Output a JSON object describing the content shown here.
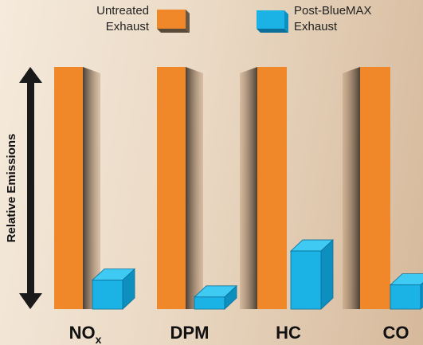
{
  "chart_data": {
    "type": "bar",
    "categories": [
      "NO",
      "DPM",
      "HC",
      "CO"
    ],
    "category_subscripts": [
      "x",
      "",
      "",
      ""
    ],
    "series": [
      {
        "name_lines": [
          "Untreated",
          "Exhaust"
        ],
        "values": [
          100,
          100,
          100,
          100
        ]
      },
      {
        "name_lines": [
          "Post-BlueMAX",
          "Exhaust"
        ],
        "values": [
          12,
          5,
          24,
          10
        ]
      }
    ],
    "title": "",
    "xlabel": "",
    "ylabel": "Relative Emissions",
    "ylim": [
      0,
      100
    ],
    "grid": false,
    "legend": "top"
  },
  "colors": {
    "untreated_front": "#f0882a",
    "untreated_side_dark": "#4a4036",
    "post_front": "#1bb3e6",
    "post_top": "#3fcaf3",
    "post_side": "#0d8fc0",
    "arrow": "#1a1a1a"
  }
}
